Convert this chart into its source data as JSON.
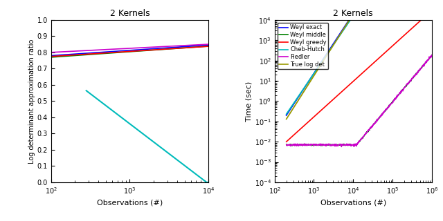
{
  "title": "2 Kernels",
  "left_ylabel": "Log determinant approximation ratio",
  "left_xlabel": "Observations (#)",
  "right_ylabel": "Time (sec)",
  "right_xlabel": "Observations (#)",
  "legend_labels": [
    "Weyl exact",
    "Weyl middle",
    "Weyl greedy",
    "Cheb-Hutch",
    "Fiedler",
    "True log det"
  ],
  "legend_colors": [
    "#0000FF",
    "#008000",
    "#FF0000",
    "#00BBBB",
    "#CC00CC",
    "#999900"
  ],
  "left_xlim": [
    100,
    10000
  ],
  "left_ylim": [
    0,
    1.0
  ],
  "right_xlim": [
    100,
    1000000
  ],
  "right_ylim": [
    0.0001,
    10000.0
  ]
}
